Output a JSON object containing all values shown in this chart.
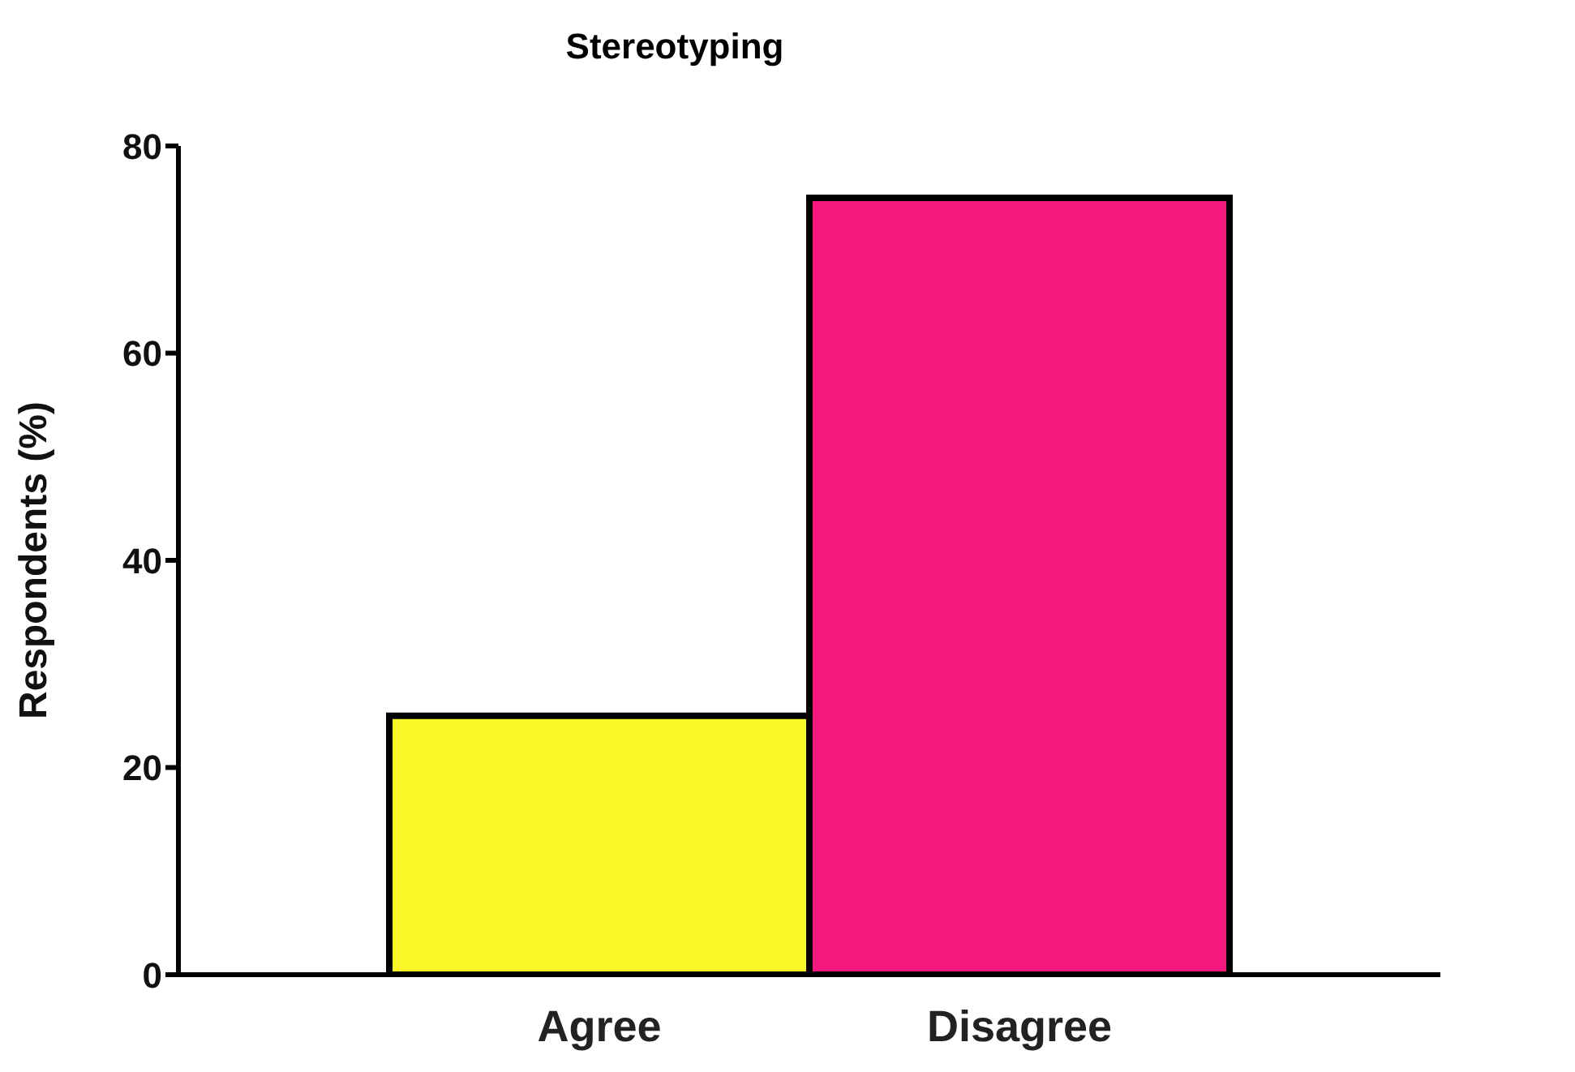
{
  "chart_data": {
    "type": "bar",
    "title": "Stereotyping",
    "ylabel": "Respondents (%)",
    "categories": [
      "Agree",
      "Disagree"
    ],
    "values": [
      25,
      75
    ],
    "colors": [
      "#fcf826",
      "#f5187e"
    ],
    "ylim": [
      0,
      80
    ],
    "yticks": [
      0,
      20,
      40,
      60,
      80
    ]
  }
}
